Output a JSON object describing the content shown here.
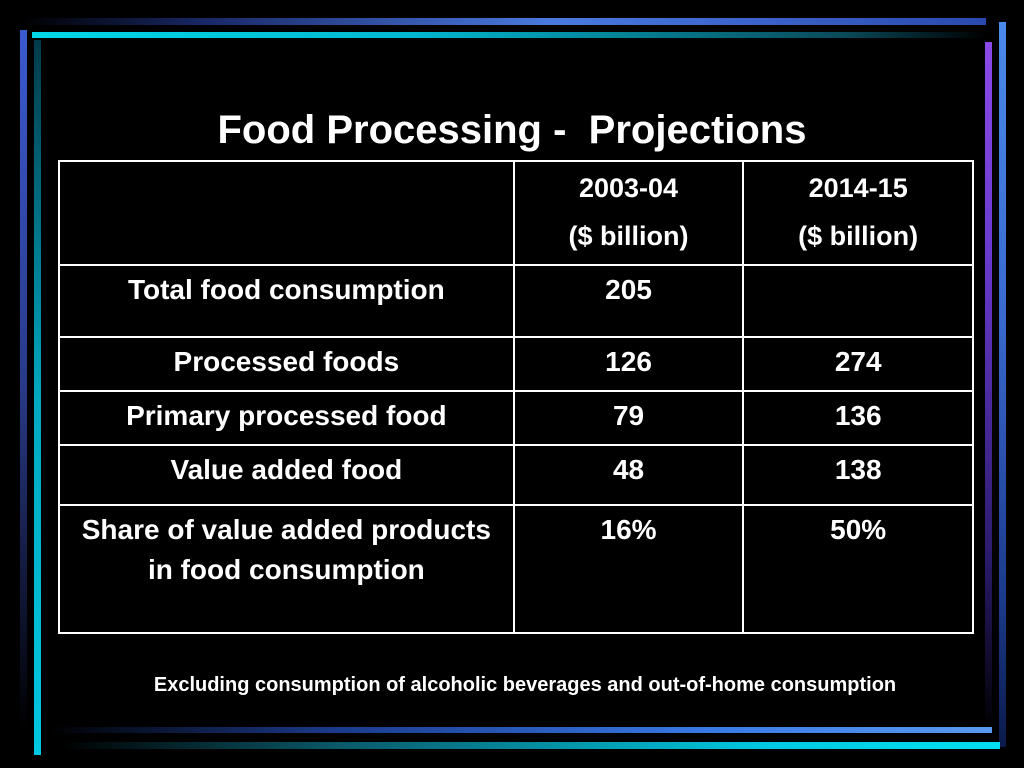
{
  "slide": {
    "title": "Food Processing -  Projections",
    "note": "Excluding consumption of alcoholic beverages and out-of-home consumption"
  },
  "table": {
    "headers": [
      "",
      "2003-04\n($ billion)",
      "2014-15\n($ billion)"
    ],
    "header_years": [
      "2003-04",
      "2014-15"
    ],
    "header_unit": "($ billion)",
    "rows": [
      {
        "label": "Total food consumption",
        "v2003": "205",
        "v2014": ""
      },
      {
        "label": "Processed foods",
        "v2003": "126",
        "v2014": "274"
      },
      {
        "label": "Primary processed food",
        "v2003": "79",
        "v2014": "136"
      },
      {
        "label": "Value added food",
        "v2003": "48",
        "v2014": "138"
      },
      {
        "label": "Share of value added products in food consumption",
        "v2003": "16%",
        "v2014": "50%"
      }
    ]
  },
  "colors": {
    "background": "#000000",
    "text": "#ffffff",
    "frame_cyan": "#00c8e0",
    "frame_blue": "#4a7ae0",
    "frame_purple": "#8a4ae8"
  }
}
